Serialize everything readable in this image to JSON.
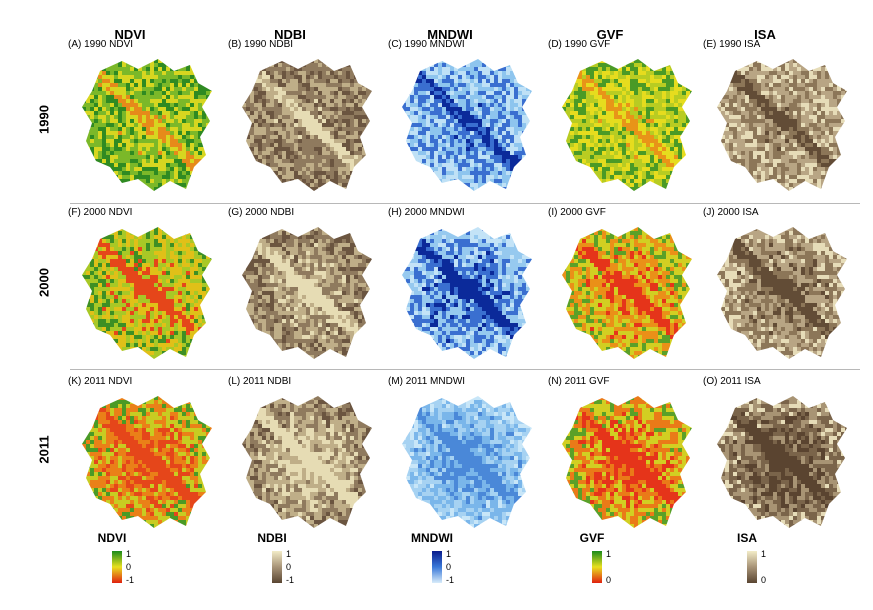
{
  "column_headers": [
    "NDVI",
    "NDBI",
    "MNDWI",
    "GVF",
    "ISA"
  ],
  "row_headers": [
    "1990",
    "2000",
    "2011"
  ],
  "panels": [
    [
      "(A) 1990 NDVI",
      "(B) 1990 NDBI",
      "(C) 1990 MNDWI",
      "(D) 1990 GVF",
      "(E) 1990 ISA"
    ],
    [
      "(F) 2000 NDVI",
      "(G) 2000 NDBI",
      "(H) 2000 MNDWI",
      "(I) 2000 GVF",
      "(J) 2000 ISA"
    ],
    [
      "(K) 2011 NDVI",
      "(L) 2011 NDBI",
      "(M) 2011 MNDWI",
      "(N) 2011 GVF",
      "(O) 2011 ISA"
    ]
  ],
  "legends": [
    {
      "title": "NDVI",
      "top": "1",
      "mid": "0",
      "bottom": "-1",
      "colors": [
        "#1a8a1a",
        "#e8e020",
        "#e02010"
      ]
    },
    {
      "title": "NDBI",
      "top": "1",
      "mid": "0",
      "bottom": "-1",
      "colors": [
        "#f3ecc8",
        "#a89478",
        "#5a4632"
      ]
    },
    {
      "title": "MNDWI",
      "top": "1",
      "mid": "0",
      "bottom": "-1",
      "colors": [
        "#0a1c8c",
        "#3a78d8",
        "#d8ecfa"
      ]
    },
    {
      "title": "GVF",
      "top": "1",
      "mid": "",
      "bottom": "0",
      "colors": [
        "#1a8a1a",
        "#e8e020",
        "#e02010"
      ]
    },
    {
      "title": "ISA",
      "top": "1",
      "mid": "",
      "bottom": "0",
      "colors": [
        "#f3ecc8",
        "#a89478",
        "#5a4632"
      ]
    }
  ],
  "map_palettes": {
    "NDVI_1990": [
      "#2f8a22",
      "#7bb829",
      "#d7d620",
      "#e68a1a"
    ],
    "NDVI_2000": [
      "#3d8f24",
      "#a8c826",
      "#e0c018",
      "#e5461a"
    ],
    "NDVI_2011": [
      "#4a9a26",
      "#c8cc22",
      "#ea8018",
      "#e5461a"
    ],
    "NDBI": [
      "#6b5540",
      "#8f7a5e",
      "#bfae88",
      "#e6dcb4"
    ],
    "MNDWI_1990": [
      "#bfe1f6",
      "#8ec5ee",
      "#3a6fd0",
      "#0b2a9a"
    ],
    "MNDWI_2000": [
      "#c3e3f7",
      "#96c9ef",
      "#3a6fd0",
      "#0b2a9a"
    ],
    "MNDWI_2011": [
      "#c8e6f8",
      "#a6d2f2",
      "#7ab6ea",
      "#4a88d8"
    ],
    "GVF_1990": [
      "#4a9a26",
      "#b8cc22",
      "#e6dc1e",
      "#e89418"
    ],
    "GVF_2000": [
      "#5aa028",
      "#d2cf22",
      "#ea9018",
      "#e5341a"
    ],
    "GVF_2011": [
      "#5aa028",
      "#d2cf22",
      "#ea7a18",
      "#e5341a"
    ],
    "ISA_1990": [
      "#e6dcb8",
      "#b8a584",
      "#8c7658",
      "#624c36"
    ],
    "ISA_2000": [
      "#e6dcb8",
      "#b8a584",
      "#8c7658",
      "#624c36"
    ],
    "ISA_2011": [
      "#e6dcb8",
      "#a89474",
      "#7a644a",
      "#5a4430"
    ]
  }
}
